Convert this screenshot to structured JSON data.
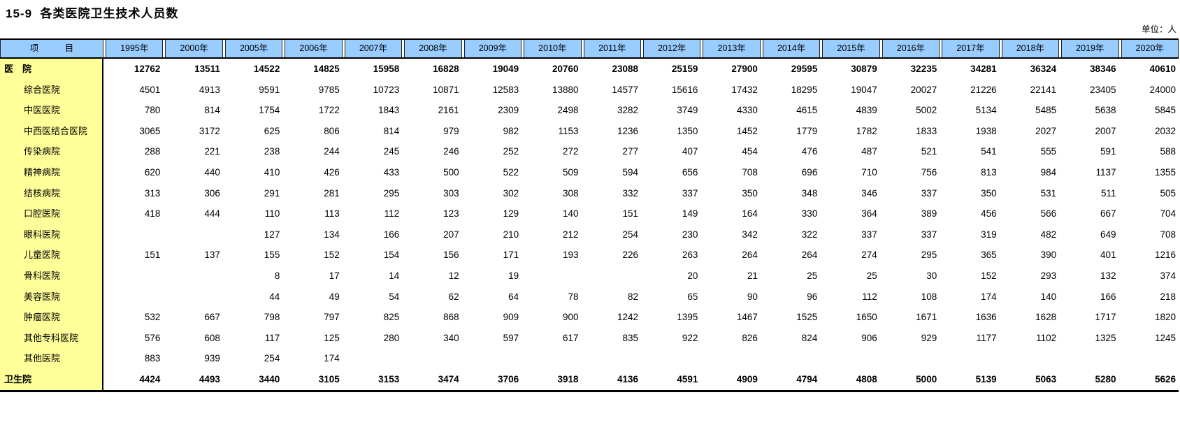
{
  "title": "15-9  各类医院卫生技术人员数",
  "unit_label": "单位：人",
  "colors": {
    "header_bg": "#99ccff",
    "label_bg": "#ffff99",
    "border": "#000000"
  },
  "table": {
    "item_header": "项　　　目",
    "years": [
      "1995年",
      "2000年",
      "2005年",
      "2006年",
      "2007年",
      "2008年",
      "2009年",
      "2010年",
      "2011年",
      "2012年",
      "2013年",
      "2014年",
      "2015年",
      "2016年",
      "2017年",
      "2018年",
      "2019年",
      "2020年"
    ],
    "rows": [
      {
        "label": "医　院",
        "bold": true,
        "values": [
          "12762",
          "13511",
          "14522",
          "14825",
          "15958",
          "16828",
          "19049",
          "20760",
          "23088",
          "25159",
          "27900",
          "29595",
          "30879",
          "32235",
          "34281",
          "36324",
          "38346",
          "40610"
        ]
      },
      {
        "label": "综合医院",
        "bold": false,
        "values": [
          "4501",
          "4913",
          "9591",
          "9785",
          "10723",
          "10871",
          "12583",
          "13880",
          "14577",
          "15616",
          "17432",
          "18295",
          "19047",
          "20027",
          "21226",
          "22141",
          "23405",
          "24000"
        ]
      },
      {
        "label": "中医医院",
        "bold": false,
        "values": [
          "780",
          "814",
          "1754",
          "1722",
          "1843",
          "2161",
          "2309",
          "2498",
          "3282",
          "3749",
          "4330",
          "4615",
          "4839",
          "5002",
          "5134",
          "5485",
          "5638",
          "5845"
        ]
      },
      {
        "label": "中西医结合医院",
        "bold": false,
        "values": [
          "3065",
          "3172",
          "625",
          "806",
          "814",
          "979",
          "982",
          "1153",
          "1236",
          "1350",
          "1452",
          "1779",
          "1782",
          "1833",
          "1938",
          "2027",
          "2007",
          "2032"
        ]
      },
      {
        "label": "传染病院",
        "bold": false,
        "values": [
          "288",
          "221",
          "238",
          "244",
          "245",
          "246",
          "252",
          "272",
          "277",
          "407",
          "454",
          "476",
          "487",
          "521",
          "541",
          "555",
          "591",
          "588"
        ]
      },
      {
        "label": "精神病院",
        "bold": false,
        "values": [
          "620",
          "440",
          "410",
          "426",
          "433",
          "500",
          "522",
          "509",
          "594",
          "656",
          "708",
          "696",
          "710",
          "756",
          "813",
          "984",
          "1137",
          "1355"
        ]
      },
      {
        "label": "结核病院",
        "bold": false,
        "values": [
          "313",
          "306",
          "291",
          "281",
          "295",
          "303",
          "302",
          "308",
          "332",
          "337",
          "350",
          "348",
          "346",
          "337",
          "350",
          "531",
          "511",
          "505"
        ]
      },
      {
        "label": "口腔医院",
        "bold": false,
        "values": [
          "418",
          "444",
          "110",
          "113",
          "112",
          "123",
          "129",
          "140",
          "151",
          "149",
          "164",
          "330",
          "364",
          "389",
          "456",
          "566",
          "667",
          "704"
        ]
      },
      {
        "label": "眼科医院",
        "bold": false,
        "values": [
          "",
          "",
          "127",
          "134",
          "166",
          "207",
          "210",
          "212",
          "254",
          "230",
          "342",
          "322",
          "337",
          "337",
          "319",
          "482",
          "649",
          "708"
        ]
      },
      {
        "label": "儿童医院",
        "bold": false,
        "values": [
          "151",
          "137",
          "155",
          "152",
          "154",
          "156",
          "171",
          "193",
          "226",
          "263",
          "264",
          "264",
          "274",
          "295",
          "365",
          "390",
          "401",
          "1216"
        ]
      },
      {
        "label": "骨科医院",
        "bold": false,
        "values": [
          "",
          "",
          "8",
          "17",
          "14",
          "12",
          "19",
          "",
          "",
          "20",
          "21",
          "25",
          "25",
          "30",
          "152",
          "293",
          "132",
          "374"
        ]
      },
      {
        "label": "美容医院",
        "bold": false,
        "values": [
          "",
          "",
          "44",
          "49",
          "54",
          "62",
          "64",
          "78",
          "82",
          "65",
          "90",
          "96",
          "112",
          "108",
          "174",
          "140",
          "166",
          "218"
        ]
      },
      {
        "label": "肿瘤医院",
        "bold": false,
        "values": [
          "532",
          "667",
          "798",
          "797",
          "825",
          "868",
          "909",
          "900",
          "1242",
          "1395",
          "1467",
          "1525",
          "1650",
          "1671",
          "1636",
          "1628",
          "1717",
          "1820"
        ]
      },
      {
        "label": "其他专科医院",
        "bold": false,
        "values": [
          "576",
          "608",
          "117",
          "125",
          "280",
          "340",
          "597",
          "617",
          "835",
          "922",
          "826",
          "824",
          "906",
          "929",
          "1177",
          "1102",
          "1325",
          "1245"
        ]
      },
      {
        "label": "其他医院",
        "bold": false,
        "values": [
          "883",
          "939",
          "254",
          "174",
          "",
          "",
          "",
          "",
          "",
          "",
          "",
          "",
          "",
          "",
          "",
          "",
          "",
          ""
        ]
      },
      {
        "label": "卫生院",
        "bold": true,
        "values": [
          "4424",
          "4493",
          "3440",
          "3105",
          "3153",
          "3474",
          "3706",
          "3918",
          "4136",
          "4591",
          "4909",
          "4794",
          "4808",
          "5000",
          "5139",
          "5063",
          "5280",
          "5626"
        ]
      }
    ]
  }
}
